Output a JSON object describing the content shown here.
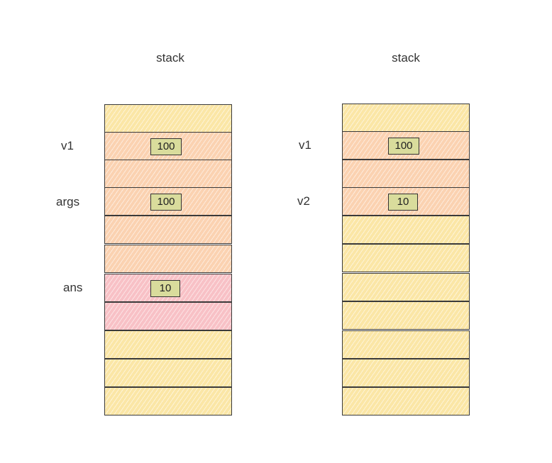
{
  "left": {
    "title": "stack",
    "labels": {
      "v1": "v1",
      "args": "args",
      "ans": "ans"
    },
    "values": {
      "v1": "100",
      "args": "100",
      "ans": "10"
    }
  },
  "right": {
    "title": "stack",
    "labels": {
      "v1": "v1",
      "v2": "v2"
    },
    "values": {
      "v1": "100",
      "v2": "10"
    }
  },
  "colors": {
    "yellow": "#fbe6a6",
    "orange": "#fbd2b1",
    "pink": "#f8c1c6",
    "value_box": "#d9dc9c",
    "border": "#3a3a3a"
  }
}
